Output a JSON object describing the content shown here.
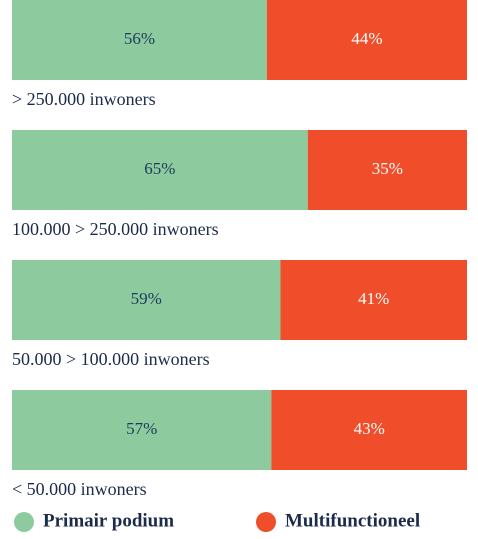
{
  "chart_data": {
    "type": "bar",
    "orientation": "horizontal",
    "stacked": true,
    "categories": [
      "> 250.000 inwoners",
      "100.000 > 250.000 inwoners",
      "50.000 > 100.000 inwoners",
      "< 50.000 inwoners"
    ],
    "series": [
      {
        "name": "Primair podium",
        "color": "#8dcb9e",
        "label_color": "#1c3a5e",
        "values": [
          56,
          65,
          59,
          57
        ],
        "value_labels": [
          "56%",
          "65%",
          "59%",
          "57%"
        ]
      },
      {
        "name": "Multifunctioneel",
        "color": "#f04e2b",
        "label_color": "#ffffff",
        "values": [
          44,
          35,
          41,
          43
        ],
        "value_labels": [
          "44%",
          "35%",
          "41%",
          "43%"
        ]
      }
    ]
  }
}
